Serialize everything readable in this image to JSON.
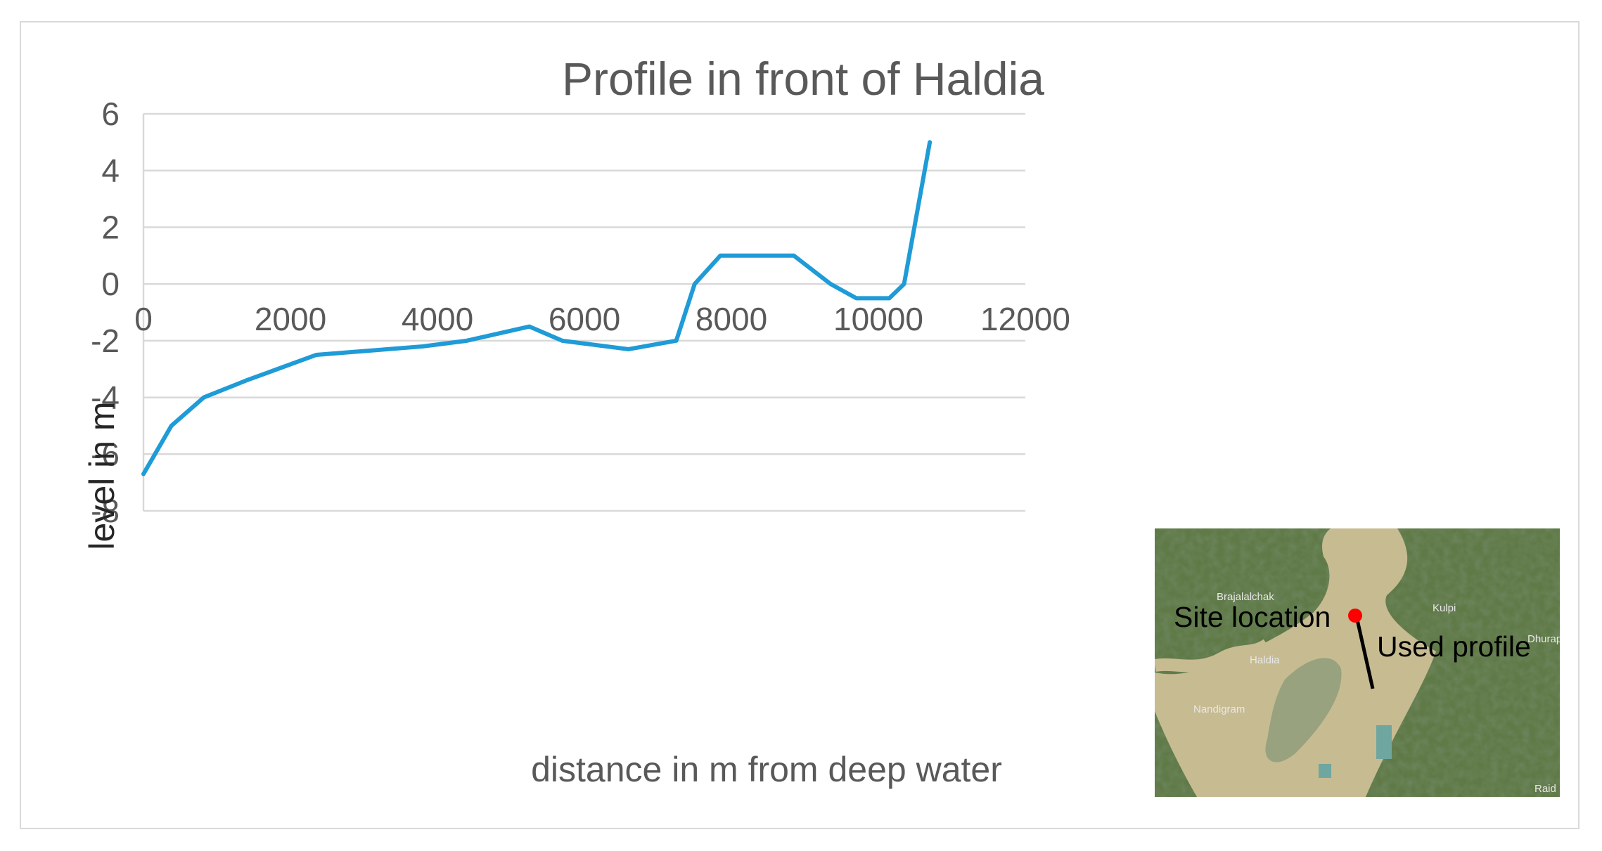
{
  "chart_data": {
    "type": "line",
    "title": "Profile in front of Haldia",
    "xlabel": "distance in m from deep water",
    "ylabel": "level in m",
    "xlim": [
      0,
      12000
    ],
    "ylim": [
      -8,
      6
    ],
    "x_ticks": [
      0,
      2000,
      4000,
      6000,
      8000,
      10000,
      12000
    ],
    "y_ticks": [
      6,
      4,
      2,
      0,
      -2,
      -4,
      -6,
      -8
    ],
    "grid": true,
    "legend": "none",
    "series": [
      {
        "color": "#1f9bd7",
        "x": [
          0,
          380,
          820,
          1400,
          2350,
          3800,
          4400,
          5250,
          5700,
          6600,
          7250,
          7500,
          7850,
          8300,
          8850,
          9350,
          9700,
          10150,
          10350,
          10700
        ],
        "y": [
          -6.7,
          -5.0,
          -4.0,
          -3.4,
          -2.5,
          -2.2,
          -2.0,
          -1.5,
          -2.0,
          -2.3,
          -2.0,
          0.0,
          1.0,
          1.0,
          1.0,
          0.0,
          -0.5,
          -0.5,
          0.0,
          5.0
        ]
      }
    ]
  },
  "inset_map": {
    "annotation_site": "Site location",
    "annotation_profile": "Used profile",
    "places": [
      "Brajalalchak",
      "Kulpi",
      "Haldia",
      "Nandigram",
      "Raid",
      "Dhurapa"
    ],
    "marker_color": "#ff0000"
  }
}
